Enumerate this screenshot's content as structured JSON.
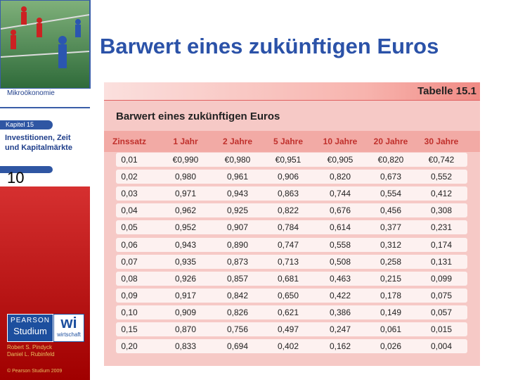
{
  "sidebar": {
    "course": "Mikroökonomie",
    "chapter_label": "Kapitel 15",
    "chapter_title": [
      "Investitionen, Zeit",
      "und Kapitalmärkte"
    ],
    "page_number": "10",
    "publisher": [
      "PEARSON",
      "Studium"
    ],
    "imprint": [
      "wi",
      "wirtschaft"
    ],
    "authors": [
      "Robert S. Pindyck",
      "Daniel L. Rubinfeld"
    ],
    "copyright": "© Pearson Studium 2009"
  },
  "title": "Barwert eines zukünftigen Euros",
  "table": {
    "label": "Tabelle 15.1",
    "caption": "Barwert eines zukünftigen Euros",
    "headers": [
      "Zinssatz",
      "1 Jahr",
      "2 Jahre",
      "5 Jahre",
      "10 Jahre",
      "20 Jahre",
      "30 Jahre"
    ],
    "rows": [
      [
        "0,01",
        "€0,990",
        "€0,980",
        "€0,951",
        "€0,905",
        "€0,820",
        "€0,742"
      ],
      [
        "0,02",
        "0,980",
        "0,961",
        "0,906",
        "0,820",
        "0,673",
        "0,552"
      ],
      [
        "0,03",
        "0,971",
        "0,943",
        "0,863",
        "0,744",
        "0,554",
        "0,412"
      ],
      [
        "0,04",
        "0,962",
        "0,925",
        "0,822",
        "0,676",
        "0,456",
        "0,308"
      ],
      [
        "0,05",
        "0,952",
        "0,907",
        "0,784",
        "0,614",
        "0,377",
        "0,231"
      ],
      [
        "0,06",
        "0,943",
        "0,890",
        "0,747",
        "0,558",
        "0,312",
        "0,174"
      ],
      [
        "0,07",
        "0,935",
        "0,873",
        "0,713",
        "0,508",
        "0,258",
        "0,131"
      ],
      [
        "0,08",
        "0,926",
        "0,857",
        "0,681",
        "0,463",
        "0,215",
        "0,099"
      ],
      [
        "0,09",
        "0,917",
        "0,842",
        "0,650",
        "0,422",
        "0,178",
        "0,075"
      ],
      [
        "0,10",
        "0,909",
        "0,826",
        "0,621",
        "0,386",
        "0,149",
        "0,057"
      ],
      [
        "0,15",
        "0,870",
        "0,756",
        "0,497",
        "0,247",
        "0,061",
        "0,015"
      ],
      [
        "0,20",
        "0,833",
        "0,694",
        "0,402",
        "0,162",
        "0,026",
        "0,004"
      ]
    ]
  }
}
